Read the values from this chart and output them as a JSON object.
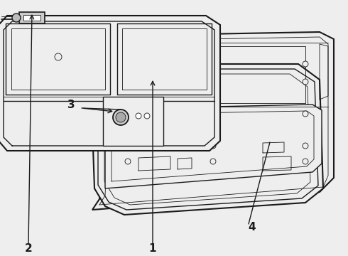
{
  "bg_color": "#eeeeee",
  "line_color": "#1a1a1a",
  "lw_main": 1.0,
  "lw_thick": 1.5,
  "lw_thin": 0.6,
  "label_fontsize": 11,
  "figsize": [
    4.9,
    3.6
  ],
  "dpi": 100
}
